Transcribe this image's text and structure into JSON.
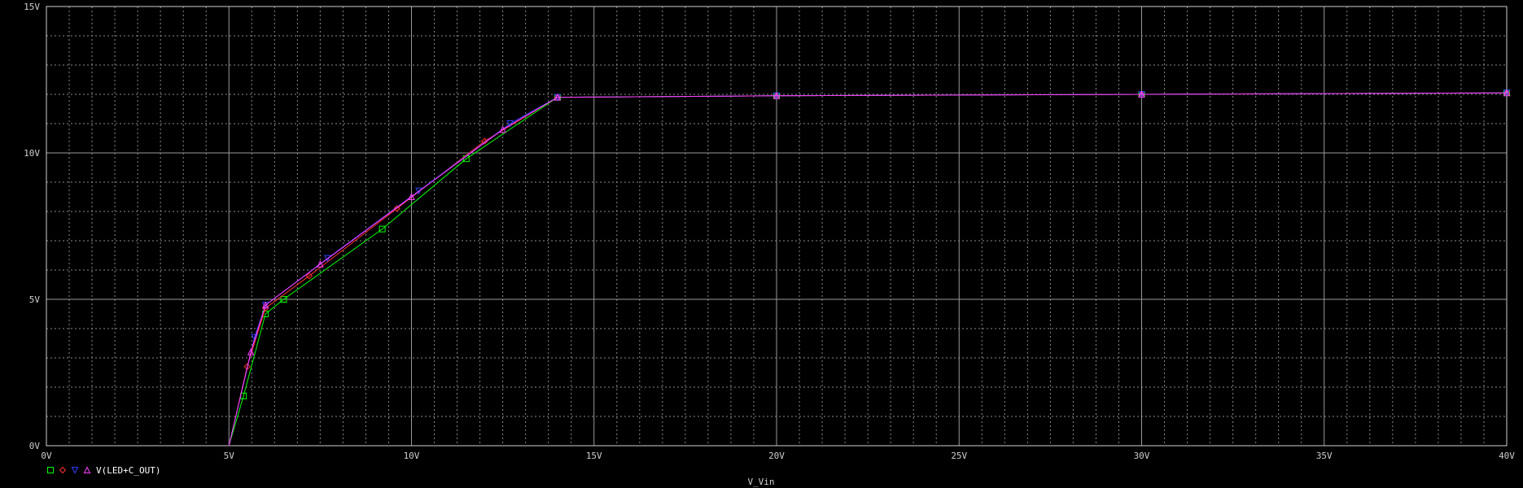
{
  "chart_data": {
    "type": "line",
    "title": "",
    "xlabel": "V_Vin",
    "ylabel": "",
    "xlim": [
      0,
      40
    ],
    "ylim": [
      0,
      15
    ],
    "x_ticks": [
      "0V",
      "5V",
      "10V",
      "15V",
      "20V",
      "25V",
      "30V",
      "35V",
      "40V"
    ],
    "y_ticks": [
      "0V",
      "5V",
      "10V",
      "15V"
    ],
    "grid": true,
    "legend": {
      "placement": "bottom-left",
      "label": "V(LED+C_OUT)",
      "marker_symbols": [
        "□",
        "◇",
        "▽",
        "△"
      ]
    },
    "series": [
      {
        "marker": "square",
        "color": "#00ff00",
        "x": [
          5,
          5.4,
          6,
          6.5,
          9.2,
          11.5,
          14.0,
          20,
          30,
          40
        ],
        "y": [
          0,
          1.7,
          4.5,
          5.0,
          7.4,
          9.8,
          11.9,
          11.95,
          12.0,
          12.05
        ]
      },
      {
        "marker": "diamond",
        "color": "#ff3030",
        "x": [
          5,
          5.5,
          6,
          7.2,
          9.6,
          12.0,
          14.0,
          20,
          30,
          40
        ],
        "y": [
          0,
          2.7,
          4.7,
          5.8,
          8.1,
          10.4,
          11.9,
          11.95,
          12.0,
          12.05
        ]
      },
      {
        "marker": "triangle-down",
        "color": "#3040ff",
        "x": [
          5,
          5.7,
          6,
          7.7,
          10.2,
          12.7,
          14.0,
          20,
          30,
          40
        ],
        "y": [
          0,
          3.7,
          4.8,
          6.4,
          8.7,
          11.0,
          11.9,
          11.95,
          12.0,
          12.05
        ]
      },
      {
        "marker": "triangle-up",
        "color": "#ff40ff",
        "x": [
          5,
          5.6,
          6,
          7.5,
          10.0,
          12.5,
          14.0,
          20,
          30,
          40
        ],
        "y": [
          0,
          3.2,
          4.8,
          6.2,
          8.5,
          10.8,
          11.9,
          11.95,
          12.0,
          12.05
        ]
      }
    ]
  }
}
